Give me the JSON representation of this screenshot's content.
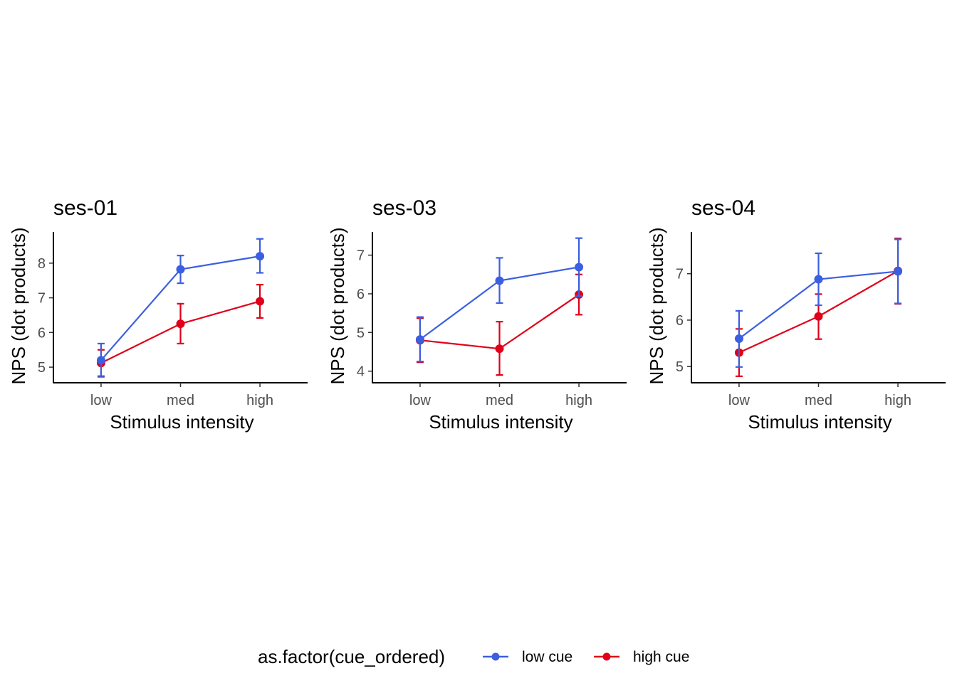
{
  "legend": {
    "title": "as.factor(cue_ordered)",
    "items": [
      {
        "label": "low cue",
        "color": "#3b5fe0"
      },
      {
        "label": "high cue",
        "color": "#e0001a"
      }
    ]
  },
  "chart_data": [
    {
      "type": "line",
      "title": "ses-01",
      "xlabel": "Stimulus intensity",
      "ylabel": "NPS (dot products)",
      "categories": [
        "low",
        "med",
        "high"
      ],
      "yticks": [
        5,
        6,
        7,
        8
      ],
      "ylim": [
        4.55,
        8.9
      ],
      "grid": false,
      "series": [
        {
          "name": "low cue",
          "color": "#3b5fe0",
          "values": [
            5.2,
            7.82,
            8.2
          ],
          "lower": [
            4.72,
            7.42,
            7.72
          ],
          "upper": [
            5.68,
            8.22,
            8.7
          ]
        },
        {
          "name": "high cue",
          "color": "#e0001a",
          "values": [
            5.12,
            6.25,
            6.9
          ],
          "lower": [
            4.74,
            5.68,
            6.42
          ],
          "upper": [
            5.5,
            6.83,
            7.38
          ]
        }
      ]
    },
    {
      "type": "line",
      "title": "ses-03",
      "xlabel": "Stimulus intensity",
      "ylabel": "NPS (dot products)",
      "categories": [
        "low",
        "med",
        "high"
      ],
      "yticks": [
        4,
        5,
        6,
        7
      ],
      "ylim": [
        3.7,
        7.6
      ],
      "grid": false,
      "series": [
        {
          "name": "low cue",
          "color": "#3b5fe0",
          "values": [
            4.82,
            6.34,
            6.69
          ],
          "lower": [
            4.25,
            5.76,
            5.94
          ],
          "upper": [
            5.4,
            6.93,
            7.44
          ]
        },
        {
          "name": "high cue",
          "color": "#e0001a",
          "values": [
            4.8,
            4.58,
            5.98
          ],
          "lower": [
            4.23,
            3.9,
            5.46
          ],
          "upper": [
            5.37,
            5.28,
            6.5
          ]
        }
      ]
    },
    {
      "type": "line",
      "title": "ses-04",
      "xlabel": "Stimulus intensity",
      "ylabel": "NPS (dot products)",
      "categories": [
        "low",
        "med",
        "high"
      ],
      "yticks": [
        5,
        6,
        7
      ],
      "ylim": [
        4.65,
        7.9
      ],
      "grid": false,
      "series": [
        {
          "name": "low cue",
          "color": "#3b5fe0",
          "values": [
            5.6,
            6.88,
            7.05
          ],
          "lower": [
            4.99,
            6.32,
            6.36
          ],
          "upper": [
            6.2,
            7.44,
            7.74
          ]
        },
        {
          "name": "high cue",
          "color": "#e0001a",
          "values": [
            5.3,
            6.08,
            7.06
          ],
          "lower": [
            4.79,
            5.59,
            6.35
          ],
          "upper": [
            5.81,
            6.56,
            7.76
          ]
        }
      ]
    }
  ]
}
